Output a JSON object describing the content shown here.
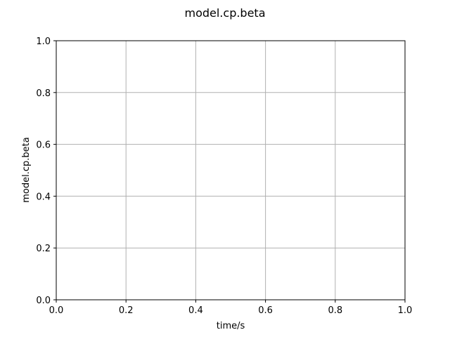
{
  "chart_data": {
    "type": "line",
    "title": "model.cp.beta",
    "xlabel": "time/s",
    "ylabel": "model.cp.beta",
    "xlim": [
      0.0,
      1.0
    ],
    "ylim": [
      0.0,
      1.0
    ],
    "xticks": [
      0.0,
      0.2,
      0.4,
      0.6,
      0.8,
      1.0
    ],
    "yticks": [
      0.0,
      0.2,
      0.4,
      0.6,
      0.8,
      1.0
    ],
    "xtick_labels": [
      "0.0",
      "0.2",
      "0.4",
      "0.6",
      "0.8",
      "1.0"
    ],
    "ytick_labels": [
      "0.0",
      "0.2",
      "0.4",
      "0.6",
      "0.8",
      "1.0"
    ],
    "grid": true,
    "series": []
  },
  "colors": {
    "grid": "#b0b0b0",
    "frame": "#000000",
    "background": "#ffffff"
  }
}
